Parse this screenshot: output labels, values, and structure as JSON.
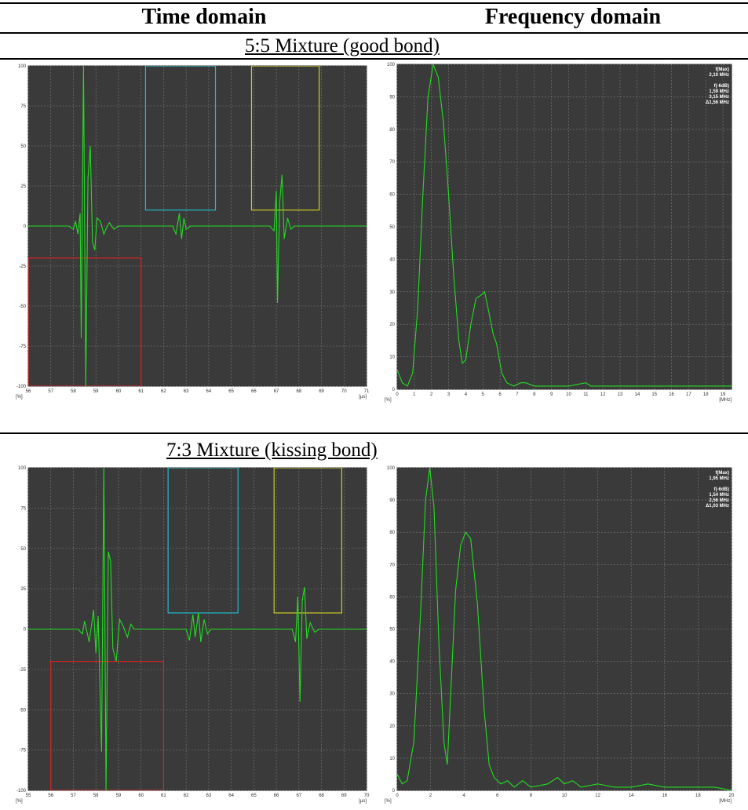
{
  "headers": {
    "time": "Time domain",
    "frequency": "Frequency domain"
  },
  "sections": [
    {
      "title": "5:5 Mixture (good bond)"
    },
    {
      "title": "7:3 Mixture (kissing bond)"
    }
  ],
  "colors": {
    "plot_bg": "#3a3a3a",
    "grid": "#7a7a7a",
    "signal": "#22dd22",
    "gate_red": "#dd2222",
    "gate_cyan": "#22bbcc",
    "gate_yellow": "#cccc22"
  },
  "chart_data": [
    {
      "type": "line",
      "domain": "time",
      "section": 0,
      "xlim": [
        56,
        71
      ],
      "ylim": [
        -100,
        100
      ],
      "xticks": [
        56,
        57,
        58,
        59,
        60,
        61,
        62,
        63,
        64,
        65,
        66,
        67,
        68,
        69,
        70,
        71
      ],
      "yticks": [
        -100,
        -75,
        -50,
        -25,
        0,
        25,
        50,
        75,
        100
      ],
      "xunit": "[µs]",
      "yunit": "[%]",
      "grid": true,
      "gates": [
        {
          "color": "red",
          "x": [
            56,
            61
          ],
          "level": -20
        },
        {
          "color": "cyan",
          "x": [
            61.2,
            64.3
          ],
          "level": 10
        },
        {
          "color": "yellow",
          "x": [
            65.9,
            68.9
          ],
          "level": 10
        }
      ],
      "series": [
        {
          "values": [
            [
              56,
              0
            ],
            [
              57.8,
              0
            ],
            [
              58.0,
              -2
            ],
            [
              58.1,
              3
            ],
            [
              58.2,
              -5
            ],
            [
              58.3,
              8
            ],
            [
              58.35,
              -70
            ],
            [
              58.45,
              100
            ],
            [
              58.55,
              -100
            ],
            [
              58.65,
              30
            ],
            [
              58.75,
              50
            ],
            [
              58.85,
              -10
            ],
            [
              58.95,
              -15
            ],
            [
              59.05,
              5
            ],
            [
              59.2,
              3
            ],
            [
              59.35,
              -5
            ],
            [
              59.5,
              0
            ],
            [
              59.6,
              2
            ],
            [
              59.8,
              -2
            ],
            [
              60,
              0
            ],
            [
              62.4,
              0
            ],
            [
              62.55,
              -5
            ],
            [
              62.7,
              8
            ],
            [
              62.8,
              -8
            ],
            [
              62.9,
              5
            ],
            [
              63.0,
              -2
            ],
            [
              63.2,
              0
            ],
            [
              66.7,
              0
            ],
            [
              66.9,
              -3
            ],
            [
              67.0,
              22
            ],
            [
              67.05,
              -48
            ],
            [
              67.15,
              15
            ],
            [
              67.25,
              32
            ],
            [
              67.35,
              -8
            ],
            [
              67.5,
              5
            ],
            [
              67.65,
              -2
            ],
            [
              67.8,
              0
            ],
            [
              71,
              0
            ]
          ]
        }
      ]
    },
    {
      "type": "line",
      "domain": "frequency",
      "section": 0,
      "xlim": [
        0,
        19.5
      ],
      "ylim": [
        0,
        100
      ],
      "xticks": [
        0,
        1,
        2,
        3,
        4,
        5,
        6,
        7,
        8,
        9,
        10,
        11,
        12,
        13,
        14,
        15,
        16,
        17,
        18,
        19
      ],
      "yticks": [
        0,
        10,
        20,
        30,
        40,
        50,
        60,
        70,
        80,
        90,
        100
      ],
      "xunit": "[MHz]",
      "yunit": "[%]",
      "grid": true,
      "annotations": [
        "f(Max)",
        "2,10 MHz",
        "f(-6dB)",
        "1,59 MHz",
        "3,15 MHz",
        "Δ1,56 MHz"
      ],
      "series": [
        {
          "values": [
            [
              0,
              6
            ],
            [
              0.3,
              2
            ],
            [
              0.6,
              1
            ],
            [
              0.9,
              5
            ],
            [
              1.2,
              25
            ],
            [
              1.5,
              60
            ],
            [
              1.8,
              90
            ],
            [
              2.1,
              100
            ],
            [
              2.4,
              96
            ],
            [
              2.7,
              82
            ],
            [
              3.0,
              60
            ],
            [
              3.3,
              35
            ],
            [
              3.6,
              15
            ],
            [
              3.8,
              8
            ],
            [
              4.0,
              9
            ],
            [
              4.3,
              20
            ],
            [
              4.6,
              28
            ],
            [
              4.9,
              29
            ],
            [
              5.1,
              30
            ],
            [
              5.3,
              25
            ],
            [
              5.6,
              17
            ],
            [
              5.8,
              14
            ],
            [
              6.1,
              5
            ],
            [
              6.4,
              2
            ],
            [
              6.8,
              1
            ],
            [
              7.2,
              2
            ],
            [
              7.5,
              2
            ],
            [
              8,
              1
            ],
            [
              9,
              1
            ],
            [
              10,
              1
            ],
            [
              11,
              2
            ],
            [
              11.3,
              1
            ],
            [
              12,
              1
            ],
            [
              13,
              1
            ],
            [
              14,
              1
            ],
            [
              15,
              1
            ],
            [
              16,
              1
            ],
            [
              17,
              1
            ],
            [
              18,
              1
            ],
            [
              19,
              1
            ],
            [
              19.5,
              1
            ]
          ]
        }
      ]
    },
    {
      "type": "line",
      "domain": "time",
      "section": 1,
      "xlim": [
        55,
        70
      ],
      "ylim": [
        -100,
        100
      ],
      "xticks": [
        55,
        56,
        57,
        58,
        59,
        60,
        61,
        62,
        63,
        64,
        65,
        66,
        67,
        68,
        69,
        70
      ],
      "yticks": [
        -100,
        -75,
        -50,
        -25,
        0,
        25,
        50,
        75,
        100
      ],
      "xunit": "[µs]",
      "yunit": "[%]",
      "grid": true,
      "gates": [
        {
          "color": "red",
          "x": [
            56,
            61
          ],
          "level": -20
        },
        {
          "color": "cyan",
          "x": [
            61.2,
            64.3
          ],
          "level": 10
        },
        {
          "color": "yellow",
          "x": [
            65.9,
            68.9
          ],
          "level": 10
        }
      ],
      "series": [
        {
          "values": [
            [
              55,
              0
            ],
            [
              57.2,
              0
            ],
            [
              57.4,
              -3
            ],
            [
              57.5,
              5
            ],
            [
              57.7,
              -8
            ],
            [
              57.9,
              12
            ],
            [
              58.0,
              -15
            ],
            [
              58.1,
              8
            ],
            [
              58.25,
              -76
            ],
            [
              58.35,
              100
            ],
            [
              58.45,
              -100
            ],
            [
              58.55,
              48
            ],
            [
              58.65,
              42
            ],
            [
              58.75,
              -12
            ],
            [
              58.9,
              -20
            ],
            [
              59.05,
              6
            ],
            [
              59.2,
              2
            ],
            [
              59.4,
              -5
            ],
            [
              59.55,
              3
            ],
            [
              59.7,
              0
            ],
            [
              62.0,
              0
            ],
            [
              62.15,
              -7
            ],
            [
              62.3,
              9
            ],
            [
              62.4,
              -5
            ],
            [
              62.55,
              10
            ],
            [
              62.65,
              -8
            ],
            [
              62.8,
              6
            ],
            [
              62.95,
              -3
            ],
            [
              63.1,
              0
            ],
            [
              66.7,
              0
            ],
            [
              66.85,
              -8
            ],
            [
              66.95,
              20
            ],
            [
              67.05,
              -45
            ],
            [
              67.15,
              18
            ],
            [
              67.25,
              26
            ],
            [
              67.35,
              -6
            ],
            [
              67.5,
              4
            ],
            [
              67.7,
              -2
            ],
            [
              67.9,
              0
            ],
            [
              70,
              0
            ]
          ]
        }
      ]
    },
    {
      "type": "line",
      "domain": "frequency",
      "section": 1,
      "xlim": [
        0,
        20
      ],
      "ylim": [
        0,
        100
      ],
      "xticks": [
        0,
        2,
        4,
        6,
        8,
        10,
        12,
        14,
        16,
        18,
        20
      ],
      "yticks": [
        0,
        10,
        20,
        30,
        40,
        50,
        60,
        70,
        80,
        90,
        100
      ],
      "xunit": "[MHz]",
      "yunit": "[%]",
      "grid": true,
      "annotations": [
        "f(Max)",
        "1,95 MHz",
        "f(-6dB)",
        "1,54 MHz",
        "2,56 MHz",
        "Δ1,03 MHz"
      ],
      "series": [
        {
          "values": [
            [
              0,
              5
            ],
            [
              0.3,
              2
            ],
            [
              0.6,
              3
            ],
            [
              1.0,
              15
            ],
            [
              1.4,
              55
            ],
            [
              1.7,
              90
            ],
            [
              1.95,
              100
            ],
            [
              2.2,
              88
            ],
            [
              2.5,
              45
            ],
            [
              2.8,
              15
            ],
            [
              3.0,
              8
            ],
            [
              3.2,
              30
            ],
            [
              3.5,
              62
            ],
            [
              3.8,
              76
            ],
            [
              4.1,
              80
            ],
            [
              4.4,
              78
            ],
            [
              4.8,
              58
            ],
            [
              5.2,
              25
            ],
            [
              5.5,
              8
            ],
            [
              5.8,
              4
            ],
            [
              6.2,
              2
            ],
            [
              6.6,
              3
            ],
            [
              7,
              1
            ],
            [
              7.5,
              3
            ],
            [
              8,
              1
            ],
            [
              9,
              2
            ],
            [
              9.6,
              4
            ],
            [
              10,
              2
            ],
            [
              10.5,
              3
            ],
            [
              11,
              1
            ],
            [
              12,
              2
            ],
            [
              13,
              1
            ],
            [
              14,
              1
            ],
            [
              15,
              2
            ],
            [
              16,
              1
            ],
            [
              17,
              1
            ],
            [
              18,
              1
            ],
            [
              19,
              1
            ],
            [
              20,
              0
            ]
          ]
        }
      ]
    }
  ]
}
